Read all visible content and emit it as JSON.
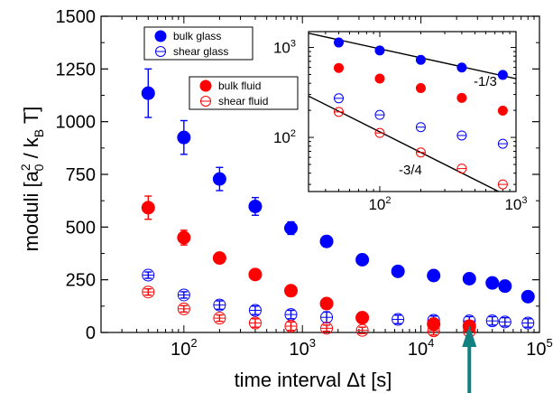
{
  "chart_data": {
    "type": "scatter",
    "xlabel": "time interval Δt [s]",
    "ylabel": {
      "prefix": "moduli [a",
      "sup": "2",
      "sub": "0",
      "middle": " / k",
      "sub2": "B",
      "suffix": " T]"
    },
    "xscale": "log",
    "xlim": [
      20,
      100000
    ],
    "ylim": [
      0,
      1500
    ],
    "x_ticks": [
      {
        "value": 100,
        "base": "10",
        "exp": "2"
      },
      {
        "value": 1000,
        "base": "10",
        "exp": "3"
      },
      {
        "value": 10000,
        "base": "10",
        "exp": "4"
      },
      {
        "value": 100000,
        "base": "10",
        "exp": "5"
      }
    ],
    "y_ticks": [
      "0",
      "250",
      "500",
      "750",
      "1000",
      "1250",
      "1500"
    ],
    "series": [
      {
        "name": "bulk glass",
        "color": "#0000ff",
        "filled": true,
        "x": [
          50,
          100,
          200,
          400,
          800,
          1600,
          3200,
          6400,
          12800,
          25600,
          40000,
          51200,
          80000
        ],
        "y": [
          1135,
          925,
          728,
          598,
          495,
          432,
          345,
          290,
          270,
          255,
          235,
          220,
          170
        ],
        "yerr": [
          115,
          80,
          55,
          42,
          30,
          25,
          0,
          0,
          0,
          0,
          0,
          0,
          0
        ]
      },
      {
        "name": "shear glass",
        "color": "#0000ff",
        "filled": false,
        "x": [
          50,
          100,
          200,
          400,
          800,
          1600,
          6400,
          12800,
          25600,
          40000,
          51200,
          80000
        ],
        "y": [
          272,
          178,
          130,
          105,
          85,
          72,
          62,
          58,
          55,
          55,
          50,
          45
        ],
        "yerr": [
          15,
          15,
          20,
          20,
          20,
          25,
          20,
          20,
          20,
          20,
          20,
          20
        ]
      },
      {
        "name": "bulk fluid",
        "color": "#ff0000",
        "filled": true,
        "x": [
          50,
          100,
          200,
          400,
          800,
          1600,
          3200,
          12800,
          25600
        ],
        "y": [
          592,
          450,
          353,
          275,
          198,
          137,
          70,
          40,
          30
        ],
        "yerr": [
          55,
          35,
          0,
          0,
          0,
          0,
          0,
          0,
          0
        ]
      },
      {
        "name": "shear fluid",
        "color": "#ff0000",
        "filled": false,
        "x": [
          50,
          100,
          200,
          400,
          800,
          1600,
          3200,
          12800,
          25600
        ],
        "y": [
          192,
          112,
          68,
          45,
          30,
          20,
          10,
          8,
          5
        ],
        "yerr": [
          15,
          15,
          15,
          20,
          20,
          15,
          15,
          20,
          20
        ]
      }
    ],
    "legend": [
      {
        "label": "bulk glass",
        "color": "#0000ff",
        "filled": true
      },
      {
        "label": "shear glass",
        "color": "#0000ff",
        "filled": false
      },
      {
        "label": "bulk fluid",
        "color": "#ff0000",
        "filled": true
      },
      {
        "label": "shear fluid",
        "color": "#ff0000",
        "filled": false
      }
    ],
    "arrow": {
      "x": 25600,
      "color": "#128080"
    },
    "inset": {
      "xscale": "log",
      "yscale": "log",
      "xlim": [
        30,
        1000
      ],
      "ylim": [
        25,
        1500
      ],
      "x_ticks": [
        {
          "value": 100,
          "base": "10",
          "exp": "2"
        },
        {
          "value": 1000,
          "base": "10",
          "exp": "3"
        }
      ],
      "y_ticks": [
        {
          "value": 100,
          "base": "10",
          "exp": "2"
        },
        {
          "value": 1000,
          "base": "10",
          "exp": "3"
        }
      ],
      "series": [
        {
          "name": "bulk glass",
          "color": "#0000ff",
          "filled": true,
          "x": [
            50,
            100,
            200,
            400,
            800
          ],
          "y": [
            1135,
            925,
            728,
            598,
            495
          ]
        },
        {
          "name": "bulk fluid",
          "color": "#ff0000",
          "filled": true,
          "x": [
            50,
            100,
            200,
            400,
            800
          ],
          "y": [
            592,
            450,
            353,
            275,
            198
          ]
        },
        {
          "name": "shear glass",
          "color": "#0000ff",
          "filled": false,
          "x": [
            50,
            100,
            200,
            400,
            800
          ],
          "y": [
            272,
            178,
            130,
            105,
            85
          ]
        },
        {
          "name": "shear fluid",
          "color": "#ff0000",
          "filled": false,
          "x": [
            50,
            100,
            200,
            400,
            800
          ],
          "y": [
            192,
            112,
            68,
            45,
            30
          ]
        }
      ],
      "fit_lines": [
        {
          "slope": -0.3333,
          "x": [
            30,
            1000
          ],
          "y": [
            1440,
            450
          ],
          "label": "-1/3"
        },
        {
          "slope": -0.75,
          "x": [
            30,
            1000
          ],
          "y": [
            288,
            20
          ],
          "label": "-3/4"
        }
      ]
    }
  }
}
